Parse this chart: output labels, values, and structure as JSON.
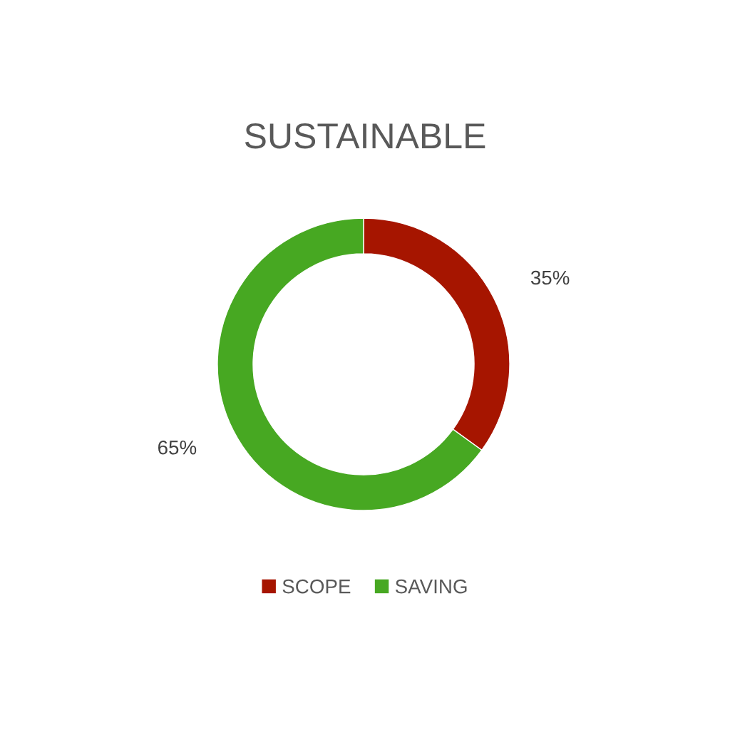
{
  "chart_data": {
    "type": "donut",
    "title": "SUSTAINABLE",
    "categories": [
      "SCOPE",
      "SAVING"
    ],
    "values": [
      35,
      65
    ],
    "colors": [
      "#a61500",
      "#47a822"
    ],
    "value_labels": [
      "35%",
      "65%"
    ],
    "legend": "bottom"
  }
}
